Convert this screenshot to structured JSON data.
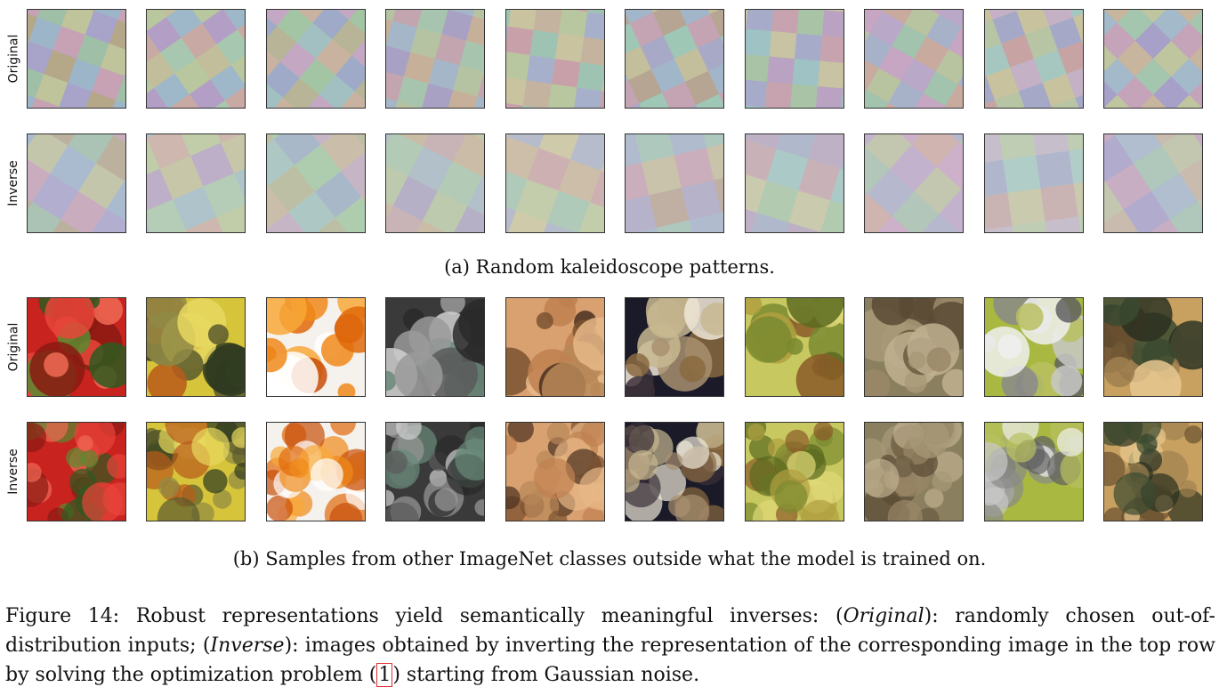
{
  "row_labels": {
    "original": "Original",
    "inverse": "Inverse"
  },
  "captions": {
    "a": "(a) Random kaleidoscope patterns.",
    "b": "(b) Samples from other ImageNet classes outside what the model is trained on."
  },
  "figure_caption": {
    "label": "Figure 14:",
    "text1": " Robust representations yield semantically meaningful inverses: (",
    "em1": "Original",
    "text2": "): randomly chosen out-of-distribution inputs; (",
    "em2": "Inverse",
    "text3": "): images obtained by inverting the representation of the corresponding image in the top row by solving the optimization problem (",
    "ref": "1",
    "text4": ") starting from Gaussian noise."
  },
  "kaleido_palettes": [
    [
      "#a8a3c9",
      "#c0c49a",
      "#9fc0a6",
      "#c7a2b4",
      "#9db5c9",
      "#b5a888"
    ],
    [
      "#b8c79e",
      "#9fb8c9",
      "#b39ec6",
      "#c9a9a3",
      "#a8c7b0",
      "#c2bd9b"
    ],
    [
      "#a3c5a4",
      "#c4a7c2",
      "#b7b497",
      "#9eaac8",
      "#c9b3a0",
      "#a2c0c1"
    ],
    [
      "#b5c3a3",
      "#a4b6c8",
      "#c6b099",
      "#a9a1c4",
      "#a7c4ae",
      "#c3a5b0"
    ],
    [
      "#c9c39f",
      "#9fc3b3",
      "#c7a0a9",
      "#a7b0ca",
      "#b9c7a0",
      "#c4b39e"
    ],
    [
      "#c4a3b2",
      "#9fc7b6",
      "#a7a9c6",
      "#c3bf9c",
      "#a1b6c9",
      "#b6a592"
    ],
    [
      "#a8c3a6",
      "#c6a3ae",
      "#a6abc9",
      "#c8c3a2",
      "#9fc2c4",
      "#b9a2c2"
    ],
    [
      "#c6a6c2",
      "#a7b2c9",
      "#b8c49f",
      "#c9aa9f",
      "#a2c3ad",
      "#b9a8c7"
    ],
    [
      "#a6c7c0",
      "#c4b1c5",
      "#c8c29f",
      "#a6a8c7",
      "#b7c5a4",
      "#c7a3a4"
    ],
    [
      "#a7a0c8",
      "#a5c6ae",
      "#c8b59d",
      "#c5a3b9",
      "#a4b9c9",
      "#bfc59f"
    ]
  ],
  "photo_palettes": [
    [
      "#c8231e",
      "#e8453a",
      "#5a8a30",
      "#8a1a12",
      "#f06a55",
      "#2e5a20"
    ],
    [
      "#d6c43a",
      "#5a5a2e",
      "#b85a1a",
      "#8f8a45",
      "#2e3a20",
      "#e8d860"
    ],
    [
      "#f5f2ee",
      "#f08a1a",
      "#e06a0a",
      "#f8a838",
      "#c84e08",
      "#ffffff"
    ],
    [
      "#3a3a3a",
      "#9a9a9a",
      "#5a5a5a",
      "#d0d0d0",
      "#6a8a7a",
      "#2a2a2a"
    ],
    [
      "#d9a070",
      "#c08050",
      "#7a5230",
      "#e8b888",
      "#4a3020",
      "#b88858"
    ],
    [
      "#1a1a28",
      "#c8b890",
      "#8a6a40",
      "#f0e8d8",
      "#3a3038",
      "#a89070"
    ],
    [
      "#c8c860",
      "#7a8a30",
      "#e0d878",
      "#8a5a28",
      "#5a6a20",
      "#b0a040"
    ],
    [
      "#8a8060",
      "#a89a78",
      "#6a5a40",
      "#c0b090",
      "#5a4a35",
      "#9a8868"
    ],
    [
      "#a8b840",
      "#c8c8c8",
      "#8a8a8a",
      "#f0f0f0",
      "#606060",
      "#b8c060"
    ],
    [
      "#c8a060",
      "#3a4a30",
      "#6a5030",
      "#e8c890",
      "#2a3020",
      "#a08050"
    ]
  ]
}
